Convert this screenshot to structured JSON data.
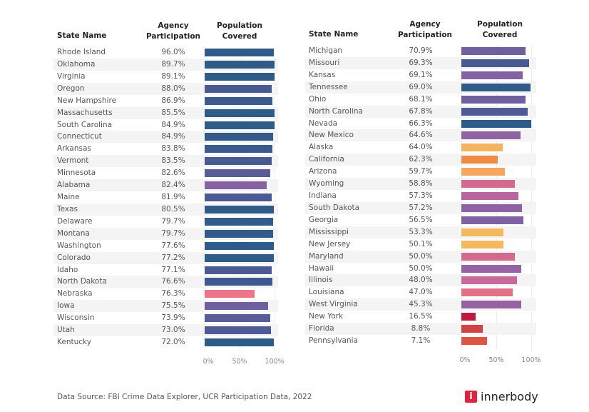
{
  "chart_data": [
    {
      "type": "bar",
      "orientation": "horizontal",
      "columns": [
        "State Name",
        "Agency Participation",
        "Population Covered"
      ],
      "xlim": [
        0,
        100
      ],
      "ticks": [
        "0%",
        "50%",
        "100%"
      ],
      "rows": [
        {
          "state": "Rhode Island",
          "participation": "96.0%",
          "covered": 99.3,
          "color": "#2f5b88"
        },
        {
          "state": "Oklahoma",
          "participation": "89.7%",
          "covered": 100,
          "color": "#2f5b88"
        },
        {
          "state": "Virginia",
          "participation": "89.1%",
          "covered": 100,
          "color": "#2f5b88"
        },
        {
          "state": "Oregon",
          "participation": "88.0%",
          "covered": 96.3,
          "color": "#475a92"
        },
        {
          "state": "New Hampshire",
          "participation": "86.9%",
          "covered": 97.3,
          "color": "#3d5a8e"
        },
        {
          "state": "Massachusetts",
          "participation": "85.5%",
          "covered": 100,
          "color": "#2f5b88"
        },
        {
          "state": "South Carolina",
          "participation": "84.9%",
          "covered": 100,
          "color": "#2f5b88"
        },
        {
          "state": "Connecticut",
          "participation": "84.9%",
          "covered": 98.3,
          "color": "#335b8a"
        },
        {
          "state": "Arkansas",
          "participation": "83.8%",
          "covered": 97.3,
          "color": "#3a5a8d"
        },
        {
          "state": "Vermont",
          "participation": "83.5%",
          "covered": 96.3,
          "color": "#475a92"
        },
        {
          "state": "Minnesota",
          "participation": "82.6%",
          "covered": 93.9,
          "color": "#5a5c98"
        },
        {
          "state": "Alabama",
          "participation": "82.4%",
          "covered": 88.9,
          "color": "#8563a3"
        },
        {
          "state": "Maine",
          "participation": "81.9%",
          "covered": 95.6,
          "color": "#4b5a93"
        },
        {
          "state": "Texas",
          "participation": "80.5%",
          "covered": 99.3,
          "color": "#2f5b88"
        },
        {
          "state": "Delaware",
          "participation": "79.7%",
          "covered": 98.3,
          "color": "#335b8a"
        },
        {
          "state": "Montana",
          "participation": "79.7%",
          "covered": 98.3,
          "color": "#335b8a"
        },
        {
          "state": "Washington",
          "participation": "77.6%",
          "covered": 99.3,
          "color": "#2f5b88"
        },
        {
          "state": "Colorado",
          "participation": "77.2%",
          "covered": 99.3,
          "color": "#2f5b88"
        },
        {
          "state": "Idaho",
          "participation": "77.1%",
          "covered": 95.6,
          "color": "#4b5a93"
        },
        {
          "state": "North Dakota",
          "participation": "76.6%",
          "covered": 96.6,
          "color": "#3d5a8e"
        },
        {
          "state": "Nebraska",
          "participation": "76.3%",
          "covered": 71.7,
          "color": "#ed7585"
        },
        {
          "state": "Iowa",
          "participation": "75.5%",
          "covered": 91.2,
          "color": "#6f5f9f"
        },
        {
          "state": "Wisconsin",
          "participation": "73.9%",
          "covered": 93.9,
          "color": "#5a5c98"
        },
        {
          "state": "Utah",
          "participation": "73.0%",
          "covered": 94.9,
          "color": "#4f5b95"
        },
        {
          "state": "Kentucky",
          "participation": "72.0%",
          "covered": 99.3,
          "color": "#2f5b88"
        }
      ]
    },
    {
      "type": "bar",
      "orientation": "horizontal",
      "columns": [
        "State Name",
        "Agency Participation",
        "Population Covered"
      ],
      "xlim": [
        0,
        100
      ],
      "ticks": [
        "0%",
        "50%",
        "100%"
      ],
      "rows": [
        {
          "state": "Michigan",
          "participation": "70.9%",
          "covered": 91.9,
          "color": "#6f5f9f"
        },
        {
          "state": "Missouri",
          "participation": "69.3%",
          "covered": 97.0,
          "color": "#475a92"
        },
        {
          "state": "Kansas",
          "participation": "69.1%",
          "covered": 87.5,
          "color": "#8563a3"
        },
        {
          "state": "Tennessee",
          "participation": "69.0%",
          "covered": 99.3,
          "color": "#2f5b88"
        },
        {
          "state": "Ohio",
          "participation": "68.1%",
          "covered": 91.9,
          "color": "#6f5f9f"
        },
        {
          "state": "North Carolina",
          "participation": "67.8%",
          "covered": 95.3,
          "color": "#4f5b95"
        },
        {
          "state": "Nevada",
          "participation": "66.3%",
          "covered": 99.7,
          "color": "#2f5b88"
        },
        {
          "state": "New Mexico",
          "participation": "64.6%",
          "covered": 85.2,
          "color": "#9063a2"
        },
        {
          "state": "Alaska",
          "participation": "64.0%",
          "covered": 59.6,
          "color": "#f5b35c"
        },
        {
          "state": "California",
          "participation": "62.3%",
          "covered": 51.9,
          "color": "#ef8b45"
        },
        {
          "state": "Arizona",
          "participation": "59.7%",
          "covered": 62.0,
          "color": "#f7a660"
        },
        {
          "state": "Wyoming",
          "participation": "58.8%",
          "covered": 76.4,
          "color": "#d4698f"
        },
        {
          "state": "Indiana",
          "participation": "57.3%",
          "covered": 81.5,
          "color": "#b866a0"
        },
        {
          "state": "South Dakota",
          "participation": "57.2%",
          "covered": 86.9,
          "color": "#8e63a3"
        },
        {
          "state": "Georgia",
          "participation": "56.5%",
          "covered": 89.2,
          "color": "#7e61a2"
        },
        {
          "state": "Mississippi",
          "participation": "53.3%",
          "covered": 60.6,
          "color": "#f5b85c"
        },
        {
          "state": "New Jersey",
          "participation": "50.1%",
          "covered": 60.6,
          "color": "#f5b85c"
        },
        {
          "state": "Maryland",
          "participation": "50.0%",
          "covered": 76.4,
          "color": "#d4698f"
        },
        {
          "state": "Hawaii",
          "participation": "50.0%",
          "covered": 85.9,
          "color": "#9563a3"
        },
        {
          "state": "Illinois",
          "participation": "48.0%",
          "covered": 80.1,
          "color": "#c6699b"
        },
        {
          "state": "Louisiana",
          "participation": "47.0%",
          "covered": 73.7,
          "color": "#e37089"
        },
        {
          "state": "West Virginia",
          "participation": "45.3%",
          "covered": 85.9,
          "color": "#9563a3"
        },
        {
          "state": "New York",
          "participation": "16.5%",
          "covered": 20.5,
          "color": "#c01a40"
        },
        {
          "state": "Florida",
          "participation": "8.8%",
          "covered": 30.6,
          "color": "#d04446"
        },
        {
          "state": "Pennsylvania",
          "participation": "7.1%",
          "covered": 36.7,
          "color": "#dc5545"
        }
      ]
    }
  ],
  "footer": {
    "source": "Data Source: FBI Crime Data Explorer, UCR Participation Data, 2022",
    "logo_icon": "i",
    "logo_text": "innerbody"
  }
}
